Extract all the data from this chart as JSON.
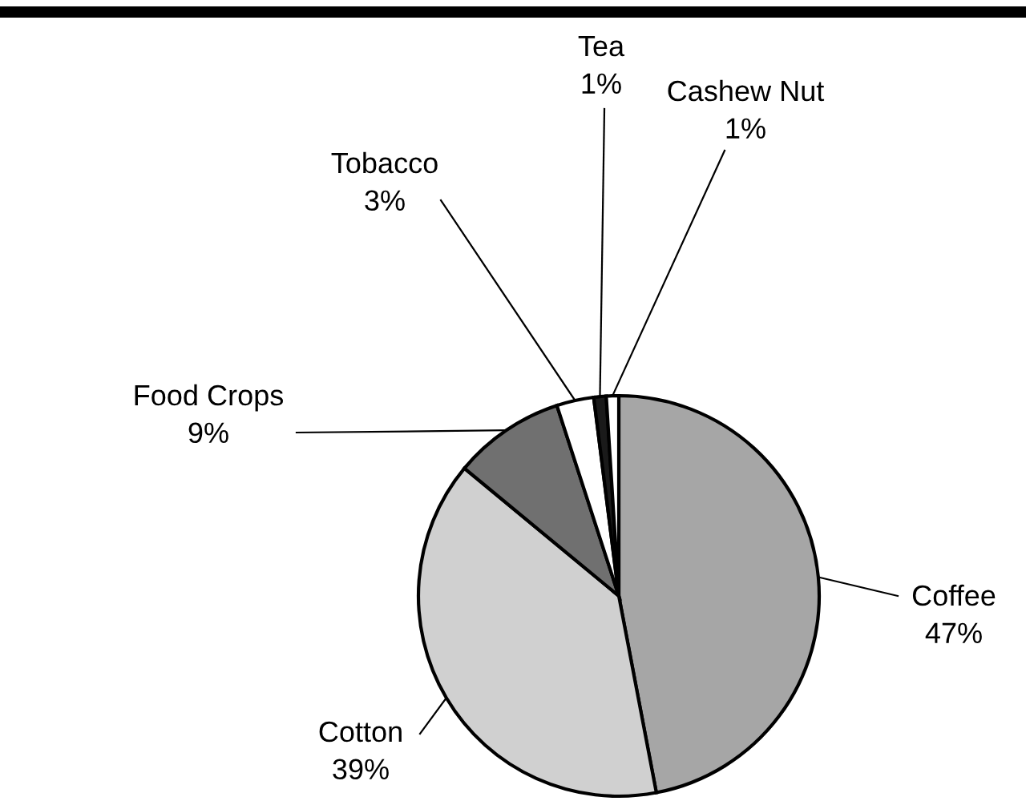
{
  "chart_data": {
    "type": "pie",
    "categories": [
      "Coffee",
      "Cotton",
      "Food Crops",
      "Tobacco",
      "Tea",
      "Cashew Nut"
    ],
    "values": [
      47,
      39,
      9,
      3,
      1,
      1
    ],
    "value_labels": [
      "47%",
      "39%",
      "9%",
      "3%",
      "1%",
      "1%"
    ],
    "colors": [
      "#a6a6a6",
      "#d0d0d0",
      "#707070",
      "#ffffff",
      "#1a1a1a",
      "#ffffff"
    ]
  }
}
